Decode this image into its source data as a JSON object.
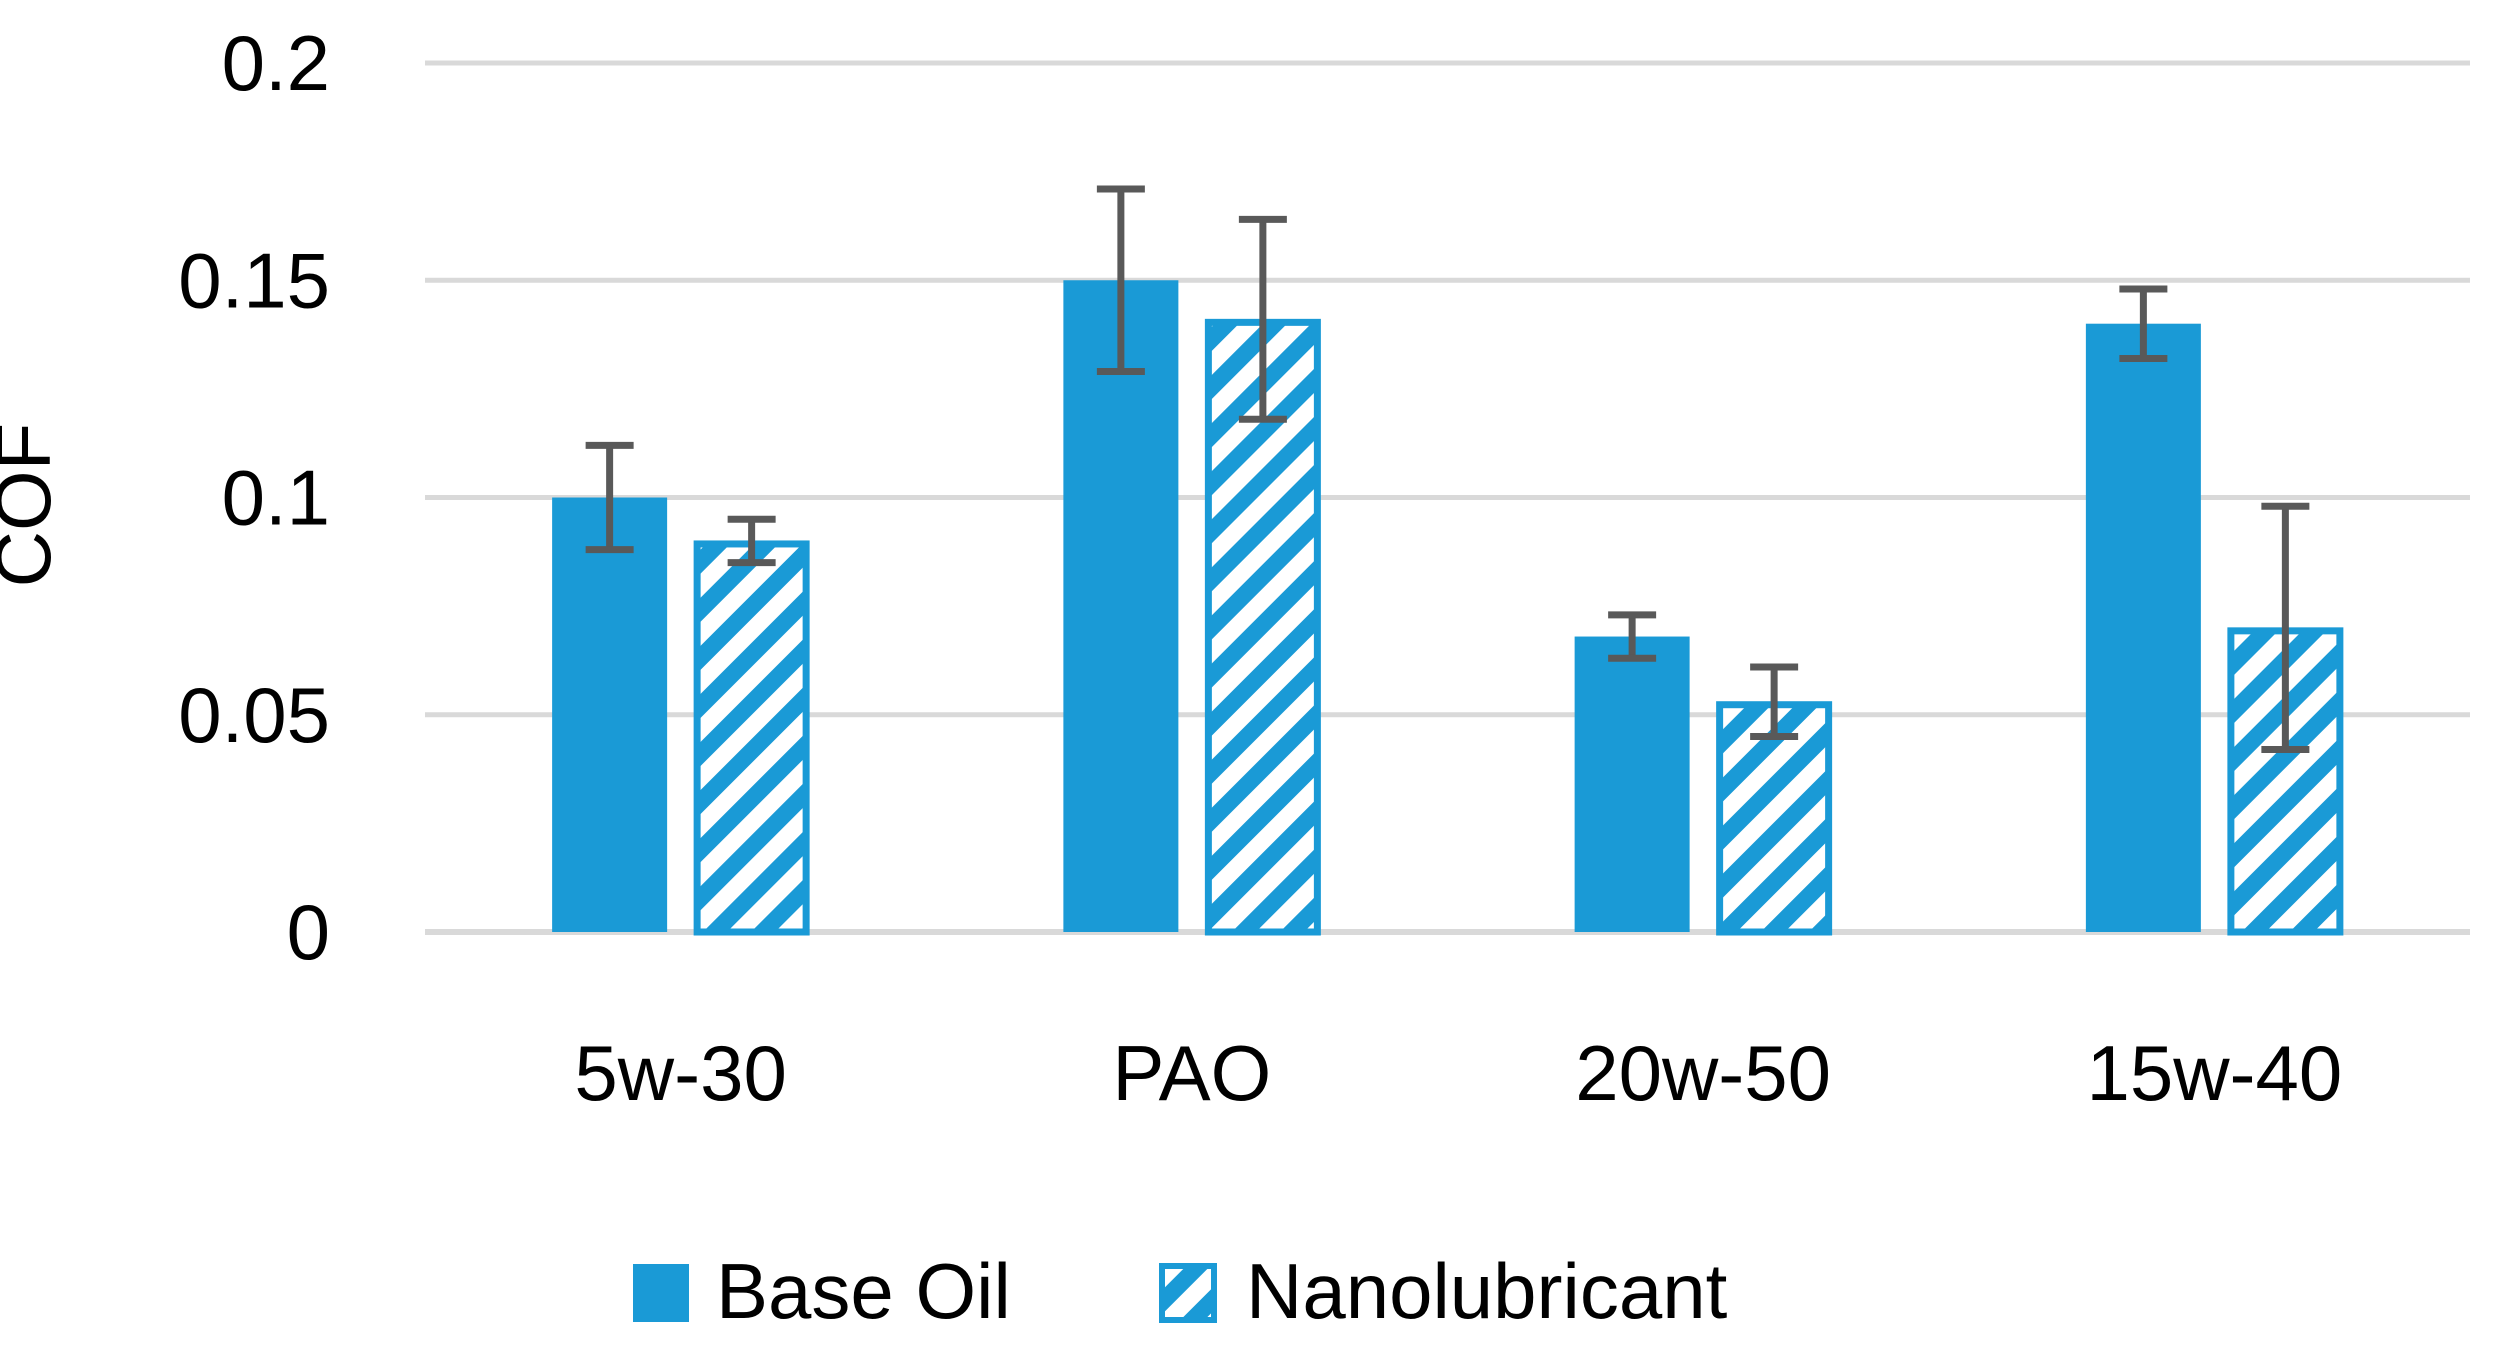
{
  "chart_data": {
    "type": "bar",
    "title": "",
    "xlabel": "",
    "ylabel": "COF",
    "ylim": [
      0,
      0.2
    ],
    "yticks": [
      0,
      0.05,
      0.1,
      0.15,
      0.2
    ],
    "ytick_labels": [
      "0",
      "0.05",
      "0.1",
      "0.15",
      "0.2"
    ],
    "grid": true,
    "legend_position": "bottom",
    "categories": [
      "5w-30",
      "PAO",
      "20w-50",
      "15w-40"
    ],
    "series": [
      {
        "name": "Base Oil",
        "style": "solid",
        "color": "#1a9ad6",
        "values": [
          0.1,
          0.15,
          0.068,
          0.14
        ],
        "errors": [
          0.012,
          0.021,
          0.005,
          0.008
        ]
      },
      {
        "name": "Nanolubricant",
        "style": "hatched",
        "color": "#1a9ad6",
        "values": [
          0.09,
          0.141,
          0.053,
          0.07
        ],
        "errors": [
          0.005,
          0.023,
          0.008,
          0.028
        ]
      }
    ],
    "grid_color": "#d9d9d9",
    "errorbar_color": "#595959"
  }
}
